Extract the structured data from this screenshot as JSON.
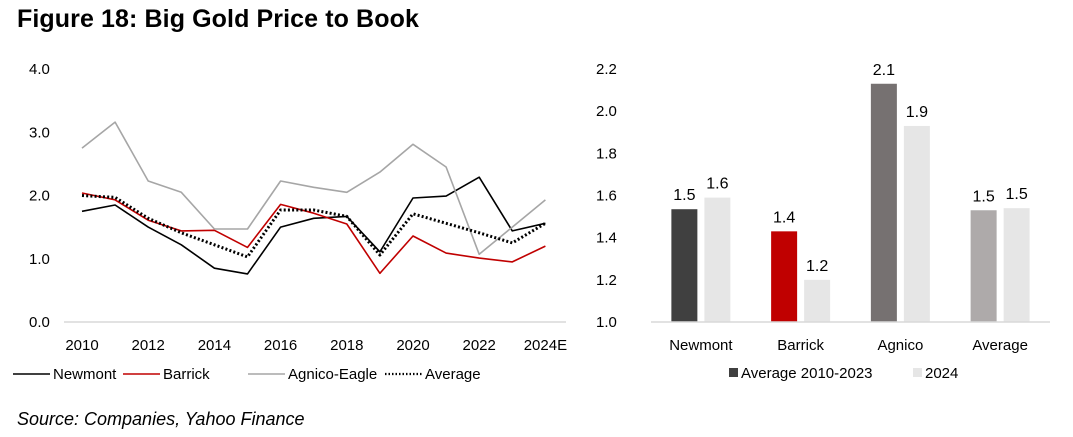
{
  "figure": {
    "title": "Figure 18: Big Gold Price to Book",
    "source": "Source: Companies, Yahoo Finance"
  },
  "chart_data": [
    {
      "type": "line",
      "title": "",
      "xlabel": "",
      "ylabel": "",
      "x": [
        "2010",
        "2011",
        "2012",
        "2013",
        "2014",
        "2015",
        "2016",
        "2017",
        "2018",
        "2019",
        "2020",
        "2021",
        "2022",
        "2023",
        "2024E"
      ],
      "x_tick_labels": [
        "2010",
        "2012",
        "2014",
        "2016",
        "2018",
        "2020",
        "2022",
        "2024E"
      ],
      "y_tick_labels": [
        "0.0",
        "1.0",
        "2.0",
        "3.0",
        "4.0"
      ],
      "ylim": [
        0,
        4
      ],
      "grid": false,
      "legend_position": "bottom",
      "series": [
        {
          "name": "Newmont",
          "color": "#000000",
          "style": "solid",
          "values": [
            1.75,
            1.85,
            1.5,
            1.22,
            0.85,
            0.76,
            1.5,
            1.64,
            1.67,
            1.11,
            1.96,
            1.99,
            2.29,
            1.44,
            1.56
          ]
        },
        {
          "name": "Barrick",
          "color": "#c00000",
          "style": "solid",
          "values": [
            2.04,
            1.93,
            1.61,
            1.44,
            1.45,
            1.18,
            1.86,
            1.72,
            1.55,
            0.77,
            1.36,
            1.09,
            1.01,
            0.95,
            1.2
          ]
        },
        {
          "name": "Agnico-Eagle",
          "color": "#a6a6a6",
          "style": "solid",
          "values": [
            2.75,
            3.16,
            2.23,
            2.05,
            1.47,
            1.47,
            2.23,
            2.13,
            2.05,
            2.37,
            2.81,
            2.45,
            1.07,
            1.5,
            1.93
          ]
        },
        {
          "name": "Average",
          "color": "#000000",
          "style": "dotted",
          "values": [
            2.0,
            1.97,
            1.64,
            1.41,
            1.22,
            1.03,
            1.77,
            1.77,
            1.67,
            1.06,
            1.71,
            1.56,
            1.41,
            1.25,
            1.56
          ]
        }
      ]
    },
    {
      "type": "bar",
      "title": "",
      "xlabel": "",
      "ylabel": "",
      "categories": [
        "Newmont",
        "Barrick",
        "Agnico",
        "Average"
      ],
      "y_tick_labels": [
        "1.0",
        "1.2",
        "1.4",
        "1.6",
        "1.8",
        "2.0",
        "2.2"
      ],
      "ylim": [
        1.0,
        2.2
      ],
      "grid": false,
      "legend_position": "bottom",
      "series": [
        {
          "name": "Average 2010-2023",
          "legend_color": "#404040",
          "colors": [
            "#404040",
            "#c00000",
            "#767171",
            "#aeaaaa"
          ],
          "values": [
            1.535,
            1.43,
            2.13,
            1.53
          ],
          "labels": [
            "1.5",
            "1.4",
            "2.1",
            "1.5"
          ]
        },
        {
          "name": "2024",
          "legend_color": "#e6e6e6",
          "colors": [
            "#e6e6e6",
            "#e6e6e6",
            "#e6e6e6",
            "#e6e6e6"
          ],
          "values": [
            1.59,
            1.2,
            1.93,
            1.54
          ],
          "labels": [
            "1.6",
            "1.2",
            "1.9",
            "1.5"
          ]
        }
      ]
    }
  ]
}
